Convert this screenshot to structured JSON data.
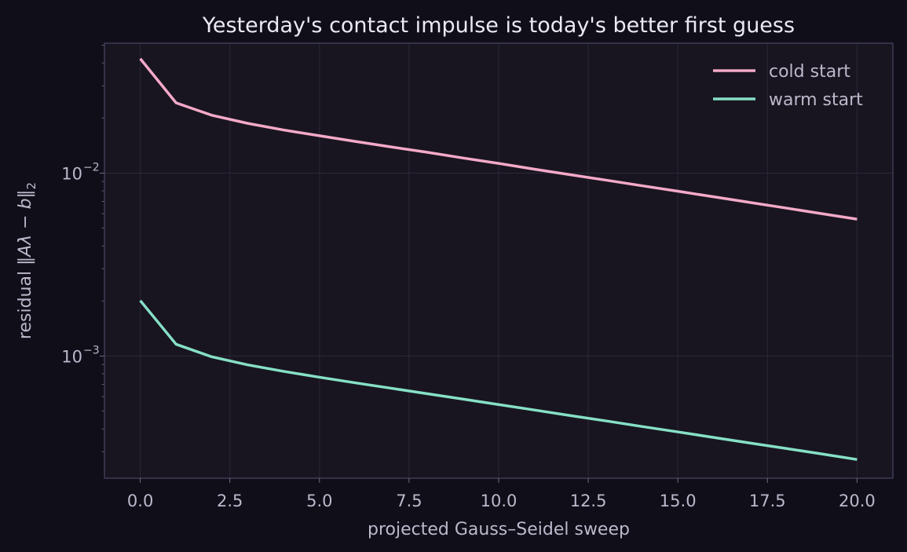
{
  "chart_data": {
    "type": "line",
    "title": "Yesterday's contact impulse is today's better first guess",
    "xlabel": "projected Gauss–Seidel sweep",
    "ylabel": {
      "prefix": "residual ",
      "norm_open": "‖",
      "expr": "Aλ − b",
      "norm_close": "‖",
      "subscript": "2"
    },
    "y_scale": "log",
    "xlim": [
      -1,
      21
    ],
    "ylim": [
      0.000215,
      0.0513
    ],
    "x_ticks": [
      {
        "value": 0,
        "label": "0.0"
      },
      {
        "value": 2.5,
        "label": "2.5"
      },
      {
        "value": 5,
        "label": "5.0"
      },
      {
        "value": 7.5,
        "label": "7.5"
      },
      {
        "value": 10,
        "label": "10.0"
      },
      {
        "value": 12.5,
        "label": "12.5"
      },
      {
        "value": 15,
        "label": "15.0"
      },
      {
        "value": 17.5,
        "label": "17.5"
      },
      {
        "value": 20,
        "label": "20.0"
      }
    ],
    "y_ticks": [
      {
        "value": 0.01,
        "base": "10",
        "exp": "−2"
      },
      {
        "value": 0.001,
        "base": "10",
        "exp": "−3"
      }
    ],
    "grid": true,
    "legend_position": "top-right",
    "x": [
      0,
      1,
      2,
      3,
      4,
      5,
      6,
      7,
      8,
      9,
      10,
      11,
      12,
      13,
      14,
      15,
      16,
      17,
      18,
      19,
      20
    ],
    "series": [
      {
        "name": "cold start",
        "color": "#f4a9c8",
        "values": [
          0.0422,
          0.0242,
          0.0207,
          0.0187,
          0.0172,
          0.016,
          0.0149,
          0.0139,
          0.013,
          0.0121,
          0.0113,
          0.0105,
          0.0098,
          0.00915,
          0.00853,
          0.00796,
          0.00742,
          0.00692,
          0.00645,
          0.00601,
          0.0056
        ]
      },
      {
        "name": "warm start",
        "color": "#86e0c6",
        "values": [
          0.00201,
          0.00116,
          0.00099,
          0.000895,
          0.000825,
          0.000766,
          0.000714,
          0.000667,
          0.000623,
          0.000582,
          0.000543,
          0.000507,
          0.000473,
          0.000442,
          0.000412,
          0.000385,
          0.000359,
          0.000335,
          0.000313,
          0.000292,
          0.000272
        ]
      }
    ]
  }
}
